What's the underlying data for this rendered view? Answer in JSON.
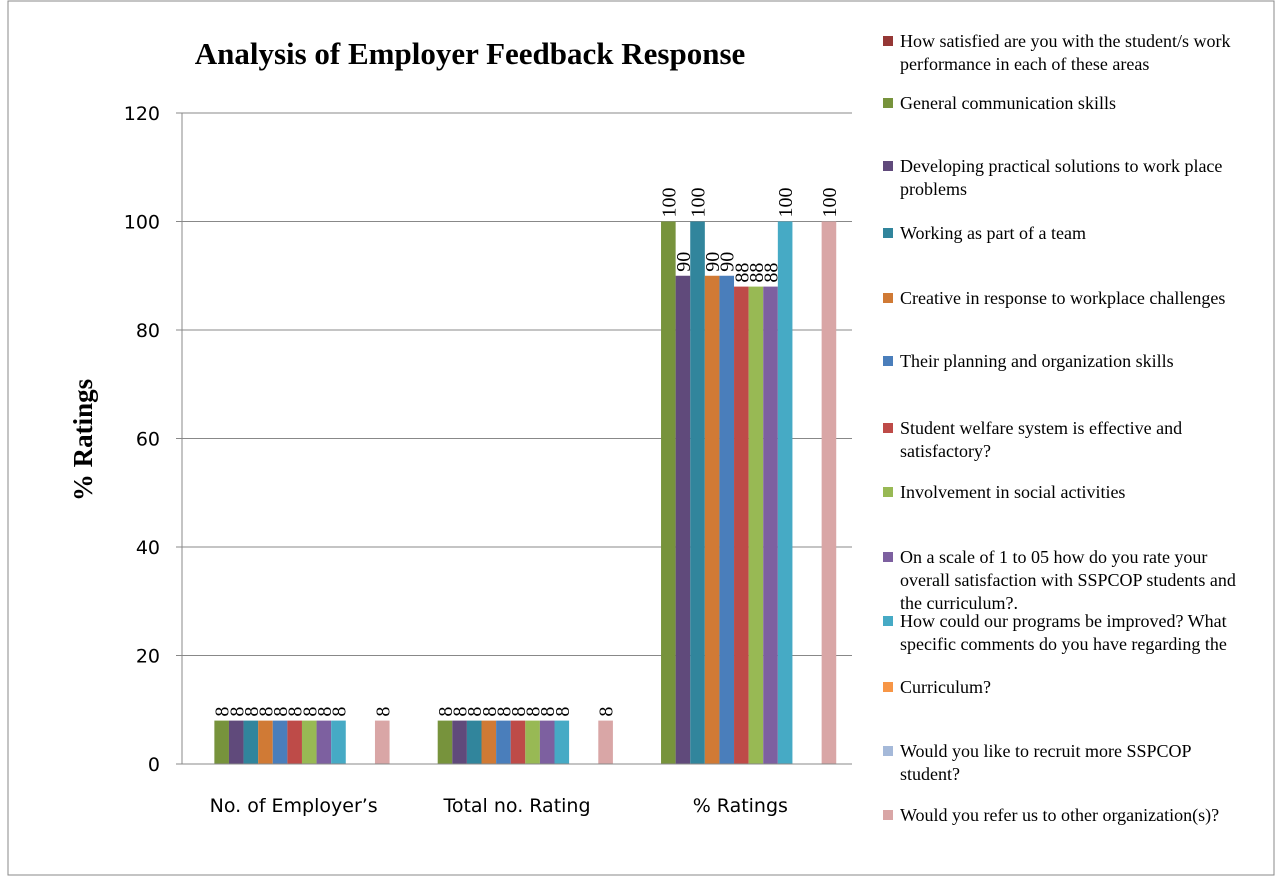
{
  "chart_data": {
    "type": "bar",
    "title": "Analysis of Employer Feedback Response",
    "y_label": "% Ratings",
    "categories": [
      "No. of Employer’s",
      "Total no. Rating",
      "% Ratings"
    ],
    "ylim": [
      0,
      120
    ],
    "yticks": [
      0,
      20,
      40,
      60,
      80,
      100,
      120
    ],
    "grid": true,
    "legend": "right",
    "series": [
      {
        "name": "How satisfied are you with the student/s work performance in each of these areas",
        "color": "#953735",
        "values": [
          null,
          null,
          null
        ]
      },
      {
        "name": "General communication skills",
        "color": "#77933c",
        "values": [
          8,
          8,
          100
        ]
      },
      {
        "name": "Developing practical solutions to work place problems",
        "color": "#604a7b",
        "values": [
          8,
          8,
          90
        ]
      },
      {
        "name": "Working as part of a team",
        "color": "#31859c",
        "values": [
          8,
          8,
          100
        ]
      },
      {
        "name": "Creative in response to workplace challenges",
        "color": "#d07a35",
        "values": [
          8,
          8,
          90
        ]
      },
      {
        "name": "Their planning and organization skills",
        "color": "#4a7ebb",
        "values": [
          8,
          8,
          90
        ]
      },
      {
        "name": "Student welfare system is effective and satisfactory?",
        "color": "#be4b48",
        "values": [
          8,
          8,
          88
        ]
      },
      {
        "name": "Involvement in social activities",
        "color": "#98b954",
        "values": [
          8,
          8,
          88
        ]
      },
      {
        "name": "On a scale of 1 to 05 how do you rate your overall satisfaction with SSPCOP students and the curriculum?.",
        "color": "#7d60a0",
        "values": [
          8,
          8,
          88
        ]
      },
      {
        "name": "How could our programs be improved? What specific comments do you have regarding the",
        "color": "#46aac5",
        "values": [
          8,
          8,
          100
        ]
      },
      {
        "name": "Curriculum?",
        "color": "#f79646",
        "values": [
          null,
          null,
          null
        ]
      },
      {
        "name": "Would you like to recruit more SSPCOP student?",
        "color": "#a5b9d9",
        "values": [
          null,
          null,
          null
        ]
      },
      {
        "name": "Would you refer us to other organization(s)?",
        "color": "#d9a6a6",
        "values": [
          8,
          8,
          100
        ]
      }
    ]
  }
}
